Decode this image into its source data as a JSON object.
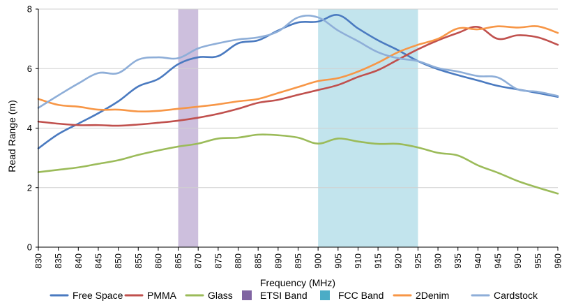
{
  "chart_data": {
    "type": "line",
    "title": "",
    "xlabel": "Frequency (MHz)",
    "ylabel": "Read Range (m)",
    "xlim": [
      830,
      960
    ],
    "ylim": [
      0,
      8
    ],
    "x_ticks": [
      "830",
      "835",
      "840",
      "845",
      "850",
      "855",
      "860",
      "865",
      "870",
      "875",
      "880",
      "885",
      "890",
      "895",
      "900",
      "905",
      "910",
      "915",
      "920",
      "925",
      "930",
      "935",
      "940",
      "945",
      "950",
      "955",
      "960"
    ],
    "y_ticks": [
      "0",
      "2",
      "4",
      "6",
      "8"
    ],
    "grid": "horizontal",
    "legend_position": "bottom",
    "bands": [
      {
        "name": "ETSI Band",
        "x_start": 865,
        "x_end": 870,
        "color": "#cdbfdd"
      },
      {
        "name": "FCC Band",
        "x_start": 900,
        "x_end": 925,
        "color": "#c2e4ed"
      }
    ],
    "series": [
      {
        "name": "Free Space",
        "color": "#4a7ac0",
        "x": [
          830,
          835,
          840,
          845,
          850,
          855,
          860,
          865,
          870,
          875,
          880,
          885,
          890,
          895,
          900,
          905,
          910,
          915,
          920,
          925,
          930,
          935,
          940,
          945,
          950,
          955,
          960
        ],
        "values": [
          3.32,
          3.8,
          4.15,
          4.5,
          4.9,
          5.4,
          5.65,
          6.15,
          6.38,
          6.42,
          6.85,
          6.95,
          7.28,
          7.55,
          7.58,
          7.8,
          7.35,
          6.95,
          6.62,
          6.25,
          5.98,
          5.78,
          5.6,
          5.42,
          5.3,
          5.18,
          5.05
        ]
      },
      {
        "name": "PMMA",
        "color": "#c0504d",
        "x": [
          830,
          835,
          840,
          845,
          850,
          855,
          860,
          865,
          870,
          875,
          880,
          885,
          890,
          895,
          900,
          905,
          910,
          915,
          920,
          925,
          930,
          935,
          940,
          945,
          950,
          955,
          960
        ],
        "values": [
          4.22,
          4.15,
          4.1,
          4.1,
          4.08,
          4.12,
          4.18,
          4.25,
          4.35,
          4.48,
          4.65,
          4.85,
          4.95,
          5.12,
          5.28,
          5.45,
          5.72,
          5.95,
          6.3,
          6.65,
          6.95,
          7.2,
          7.4,
          7.0,
          7.12,
          7.05,
          6.8
        ]
      },
      {
        "name": "Glass",
        "color": "#9bbb59",
        "x": [
          830,
          835,
          840,
          845,
          850,
          855,
          860,
          865,
          870,
          875,
          880,
          885,
          890,
          895,
          900,
          905,
          910,
          915,
          920,
          925,
          930,
          935,
          940,
          945,
          950,
          955,
          960
        ],
        "values": [
          2.52,
          2.6,
          2.68,
          2.8,
          2.92,
          3.1,
          3.25,
          3.38,
          3.48,
          3.65,
          3.68,
          3.78,
          3.76,
          3.68,
          3.48,
          3.65,
          3.55,
          3.47,
          3.47,
          3.35,
          3.17,
          3.08,
          2.75,
          2.5,
          2.22,
          2.0,
          1.8
        ]
      },
      {
        "name": "2Denim",
        "color": "#f79646",
        "x": [
          830,
          835,
          840,
          845,
          850,
          855,
          860,
          865,
          870,
          875,
          880,
          885,
          890,
          895,
          900,
          905,
          910,
          915,
          920,
          925,
          930,
          935,
          940,
          945,
          950,
          955,
          960
        ],
        "values": [
          4.98,
          4.78,
          4.72,
          4.62,
          4.62,
          4.56,
          4.58,
          4.65,
          4.72,
          4.8,
          4.9,
          4.98,
          5.18,
          5.38,
          5.58,
          5.68,
          5.9,
          6.2,
          6.55,
          6.8,
          7.0,
          7.35,
          7.32,
          7.42,
          7.38,
          7.42,
          7.2
        ]
      },
      {
        "name": "Cardstock",
        "color": "#8eaed8",
        "x": [
          830,
          835,
          840,
          845,
          850,
          855,
          860,
          865,
          870,
          875,
          880,
          885,
          890,
          895,
          900,
          905,
          910,
          915,
          920,
          925,
          930,
          935,
          940,
          945,
          950,
          955,
          960
        ],
        "values": [
          4.68,
          5.1,
          5.5,
          5.85,
          5.85,
          6.3,
          6.38,
          6.35,
          6.68,
          6.85,
          6.98,
          7.05,
          7.25,
          7.72,
          7.72,
          7.28,
          6.92,
          6.55,
          6.35,
          6.25,
          6.02,
          5.9,
          5.75,
          5.7,
          5.3,
          5.22,
          5.08
        ]
      }
    ],
    "legend": [
      "Free Space",
      "PMMA",
      "Glass",
      "ETSI Band",
      "FCC Band",
      "2Denim",
      "Cardstock"
    ]
  }
}
